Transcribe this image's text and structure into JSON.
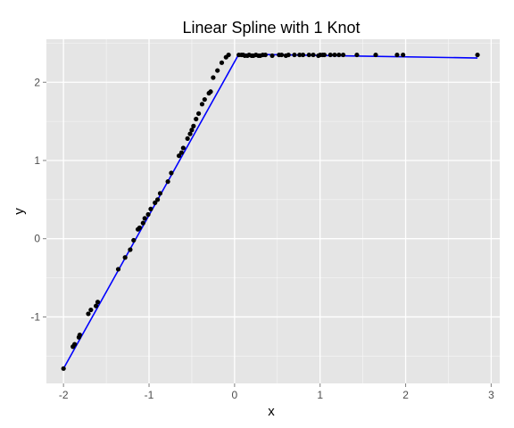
{
  "chart_data": {
    "type": "scatter",
    "title": "Linear Spline with 1 Knot",
    "xlabel": "x",
    "ylabel": "y",
    "xlim": [
      -2.2,
      3.1
    ],
    "ylim": [
      -1.85,
      2.55
    ],
    "x_ticks": [
      -2,
      -1,
      0,
      1,
      2,
      3
    ],
    "x_tick_labels": [
      "-2",
      "-1",
      "0",
      "1",
      "2",
      "3"
    ],
    "y_ticks": [
      -1,
      0,
      1,
      2
    ],
    "y_tick_labels": [
      "-1",
      "0",
      "1",
      "2"
    ],
    "grid": true,
    "legend": "none",
    "colors": {
      "panel": "#e5e5e5",
      "grid": "#ffffff",
      "points": "#000000",
      "fit_line": "#0000ff"
    },
    "points": {
      "x": [
        -2.0,
        -1.89,
        -1.87,
        -1.82,
        -1.81,
        -1.71,
        -1.68,
        -1.62,
        -1.6,
        -1.36,
        -1.28,
        -1.22,
        -1.18,
        -1.13,
        -1.11,
        -1.07,
        -1.05,
        -1.01,
        -0.98,
        -0.93,
        -0.9,
        -0.87,
        -0.78,
        -0.74,
        -0.65,
        -0.62,
        -0.6,
        -0.55,
        -0.52,
        -0.5,
        -0.48,
        -0.45,
        -0.42,
        -0.38,
        -0.35,
        -0.3,
        -0.28,
        -0.25,
        -0.2,
        -0.15,
        -0.1,
        -0.07,
        0.05,
        0.08,
        0.1,
        0.12,
        0.15,
        0.17,
        0.2,
        0.22,
        0.25,
        0.28,
        0.3,
        0.33,
        0.36,
        0.44,
        0.52,
        0.55,
        0.6,
        0.63,
        0.7,
        0.76,
        0.8,
        0.87,
        0.92,
        0.98,
        1.0,
        1.03,
        1.05,
        1.12,
        1.17,
        1.22,
        1.27,
        1.43,
        1.65,
        1.9,
        1.97,
        2.84
      ],
      "y": [
        -1.66,
        -1.38,
        -1.35,
        -1.26,
        -1.23,
        -0.96,
        -0.91,
        -0.86,
        -0.81,
        -0.39,
        -0.24,
        -0.14,
        -0.02,
        0.12,
        0.14,
        0.2,
        0.26,
        0.31,
        0.38,
        0.46,
        0.5,
        0.58,
        0.73,
        0.84,
        1.06,
        1.1,
        1.16,
        1.28,
        1.34,
        1.39,
        1.44,
        1.53,
        1.6,
        1.72,
        1.78,
        1.86,
        1.88,
        2.06,
        2.15,
        2.25,
        2.32,
        2.35,
        2.35,
        2.35,
        2.35,
        2.34,
        2.34,
        2.35,
        2.34,
        2.34,
        2.35,
        2.34,
        2.34,
        2.35,
        2.35,
        2.34,
        2.35,
        2.35,
        2.34,
        2.35,
        2.35,
        2.35,
        2.35,
        2.35,
        2.35,
        2.34,
        2.35,
        2.35,
        2.35,
        2.35,
        2.35,
        2.35,
        2.35,
        2.35,
        2.35,
        2.35,
        2.35,
        2.35
      ]
    },
    "fit_line": {
      "x": [
        -2.0,
        0.05,
        2.84
      ],
      "y": [
        -1.66,
        2.36,
        2.31
      ]
    }
  }
}
